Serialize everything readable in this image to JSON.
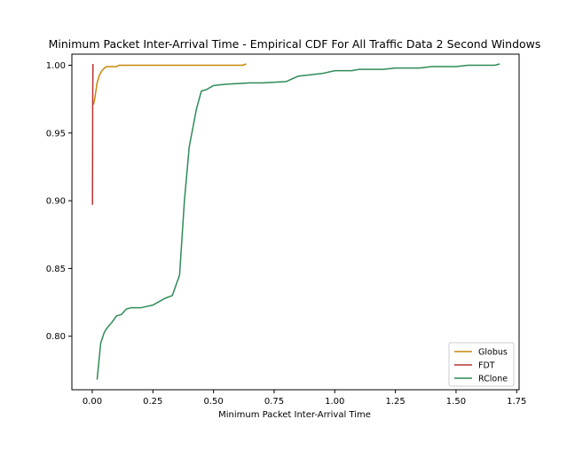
{
  "chart_data": {
    "type": "line",
    "title": "Minimum Packet Inter-Arrival Time - Empirical CDF For All Traffic Data 2 Second Windows",
    "xlabel": "Minimum Packet Inter-Arrival Time",
    "ylabel": "",
    "xlim": [
      -0.084,
      1.76
    ],
    "ylim": [
      0.7605,
      1.0082
    ],
    "xticks": [
      0.0,
      0.25,
      0.5,
      0.75,
      1.0,
      1.25,
      1.5,
      1.75
    ],
    "xtick_labels": [
      "0.00",
      "0.25",
      "0.50",
      "0.75",
      "1.00",
      "1.25",
      "1.50",
      "1.75"
    ],
    "yticks": [
      0.8,
      0.85,
      0.9,
      0.95,
      1.0
    ],
    "ytick_labels": [
      "0.80",
      "0.85",
      "0.90",
      "0.95",
      "1.00"
    ],
    "grid": false,
    "legend": {
      "location": "lower-right"
    },
    "series": [
      {
        "name": "Globus",
        "color": "#c8870a",
        "x": [
          0.005,
          0.01,
          0.015,
          0.02,
          0.025,
          0.03,
          0.04,
          0.05,
          0.06,
          0.07,
          0.08,
          0.09,
          0.1,
          0.11,
          0.12,
          0.15,
          0.2,
          0.3,
          0.4,
          0.5,
          0.6,
          0.62,
          0.635
        ],
        "y": [
          0.971,
          0.975,
          0.981,
          0.987,
          0.99,
          0.993,
          0.996,
          0.998,
          0.999,
          0.999,
          0.999,
          0.999,
          0.999,
          1.0,
          1.0,
          1.0,
          1.0,
          1.0,
          1.0,
          1.0,
          1.0,
          1.0,
          1.001
        ]
      },
      {
        "name": "FDT",
        "color": "#b83232",
        "x": [
          0.001,
          0.002,
          0.003
        ],
        "y": [
          0.897,
          0.98,
          1.001
        ]
      },
      {
        "name": "RClone",
        "color": "#2e8b57",
        "x": [
          0.02,
          0.035,
          0.05,
          0.065,
          0.08,
          0.1,
          0.12,
          0.14,
          0.16,
          0.18,
          0.2,
          0.25,
          0.28,
          0.3,
          0.33,
          0.36,
          0.38,
          0.4,
          0.43,
          0.45,
          0.47,
          0.49,
          0.5,
          0.55,
          0.65,
          0.68,
          0.7,
          0.8,
          0.85,
          0.9,
          0.95,
          1.0,
          1.03,
          1.07,
          1.1,
          1.2,
          1.25,
          1.35,
          1.4,
          1.5,
          1.55,
          1.62,
          1.66,
          1.68
        ],
        "y": [
          0.768,
          0.795,
          0.803,
          0.807,
          0.81,
          0.815,
          0.816,
          0.82,
          0.821,
          0.821,
          0.821,
          0.823,
          0.826,
          0.828,
          0.83,
          0.845,
          0.9,
          0.94,
          0.968,
          0.981,
          0.982,
          0.984,
          0.985,
          0.986,
          0.987,
          0.987,
          0.987,
          0.988,
          0.992,
          0.993,
          0.994,
          0.996,
          0.996,
          0.996,
          0.997,
          0.997,
          0.998,
          0.998,
          0.999,
          0.999,
          1.0,
          1.0,
          1.0,
          1.001
        ]
      }
    ]
  }
}
